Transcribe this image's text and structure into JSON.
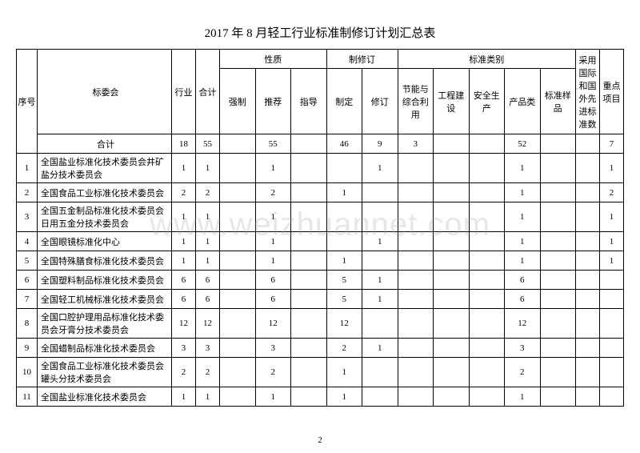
{
  "title": "2017 年 8 月轻工行业标准制修订计划汇总表",
  "watermark": "www.weizhuannet.com",
  "page_number": "2",
  "headers": {
    "seq": "序号",
    "committee": "标委会",
    "industry": "行业",
    "total": "合计",
    "nature": "性质",
    "revise": "制修订",
    "category": "标准类别",
    "adopt": "采用国际和国外先进标准数",
    "key": "重点项目",
    "mandatory": "强制",
    "recommend": "推荐",
    "guide": "指导",
    "make": "制定",
    "rev": "修订",
    "energy": "节能与综合利用",
    "engineering": "工程建设",
    "safety": "安全生产",
    "product": "产品类",
    "sample": "标准样品",
    "sum_label": "合计"
  },
  "totals": {
    "industry": "18",
    "total": "55",
    "mandatory": "",
    "recommend": "55",
    "guide": "",
    "make": "46",
    "rev": "9",
    "energy": "3",
    "engineering": "",
    "safety": "",
    "product": "52",
    "sample": "",
    "adopt": "",
    "key": "7"
  },
  "rows": [
    {
      "seq": "1",
      "name": "全国盐业标准化技术委员会井矿盐分技术委员会",
      "industry": "1",
      "total": "1",
      "mandatory": "",
      "recommend": "1",
      "guide": "",
      "make": "",
      "rev": "1",
      "energy": "",
      "engineering": "",
      "safety": "",
      "product": "1",
      "sample": "",
      "adopt": "",
      "key": "1"
    },
    {
      "seq": "2",
      "name": "全国食品工业标准化技术委员会",
      "industry": "2",
      "total": "2",
      "mandatory": "",
      "recommend": "2",
      "guide": "",
      "make": "1",
      "rev": "",
      "energy": "",
      "engineering": "",
      "safety": "",
      "product": "1",
      "sample": "",
      "adopt": "",
      "key": "2"
    },
    {
      "seq": "3",
      "name": "全国五金制品标准化技术委员会日用五金分技术委员会",
      "industry": "1",
      "total": "1",
      "mandatory": "",
      "recommend": "1",
      "guide": "",
      "make": "",
      "rev": "",
      "energy": "",
      "engineering": "",
      "safety": "",
      "product": "1",
      "sample": "",
      "adopt": "",
      "key": "1"
    },
    {
      "seq": "4",
      "name": "全国眼镜标准化中心",
      "industry": "1",
      "total": "1",
      "mandatory": "",
      "recommend": "1",
      "guide": "",
      "make": "",
      "rev": "1",
      "energy": "",
      "engineering": "",
      "safety": "",
      "product": "1",
      "sample": "",
      "adopt": "",
      "key": "1"
    },
    {
      "seq": "5",
      "name": "全国特殊膳食标准化技术委员会",
      "industry": "1",
      "total": "1",
      "mandatory": "",
      "recommend": "1",
      "guide": "",
      "make": "1",
      "rev": "",
      "energy": "",
      "engineering": "",
      "safety": "",
      "product": "1",
      "sample": "",
      "adopt": "",
      "key": "1"
    },
    {
      "seq": "6",
      "name": "全国塑料制品标准化技术委员会",
      "industry": "6",
      "total": "6",
      "mandatory": "",
      "recommend": "6",
      "guide": "",
      "make": "5",
      "rev": "1",
      "energy": "",
      "engineering": "",
      "safety": "",
      "product": "6",
      "sample": "",
      "adopt": "",
      "key": ""
    },
    {
      "seq": "7",
      "name": "全国轻工机械标准化技术委员会",
      "industry": "6",
      "total": "6",
      "mandatory": "",
      "recommend": "6",
      "guide": "",
      "make": "5",
      "rev": "1",
      "energy": "",
      "engineering": "",
      "safety": "",
      "product": "6",
      "sample": "",
      "adopt": "",
      "key": ""
    },
    {
      "seq": "8",
      "name": "全国口腔护理用品标准化技术委员会牙膏分技术委员会",
      "industry": "12",
      "total": "12",
      "mandatory": "",
      "recommend": "12",
      "guide": "",
      "make": "12",
      "rev": "",
      "energy": "",
      "engineering": "",
      "safety": "",
      "product": "12",
      "sample": "",
      "adopt": "",
      "key": ""
    },
    {
      "seq": "9",
      "name": "全国蜡制品标准化技术委员会",
      "industry": "3",
      "total": "3",
      "mandatory": "",
      "recommend": "3",
      "guide": "",
      "make": "2",
      "rev": "1",
      "energy": "",
      "engineering": "",
      "safety": "",
      "product": "3",
      "sample": "",
      "adopt": "",
      "key": ""
    },
    {
      "seq": "10",
      "name": "全国食品工业标准化技术委员会罐头分技术委员会",
      "industry": "2",
      "total": "2",
      "mandatory": "",
      "recommend": "2",
      "guide": "",
      "make": "1",
      "rev": "",
      "energy": "",
      "engineering": "",
      "safety": "",
      "product": "2",
      "sample": "",
      "adopt": "",
      "key": ""
    },
    {
      "seq": "11",
      "name": "全国盐业标准化技术委员会",
      "industry": "1",
      "total": "1",
      "mandatory": "",
      "recommend": "1",
      "guide": "",
      "make": "1",
      "rev": "",
      "energy": "",
      "engineering": "",
      "safety": "",
      "product": "1",
      "sample": "",
      "adopt": "",
      "key": ""
    }
  ]
}
